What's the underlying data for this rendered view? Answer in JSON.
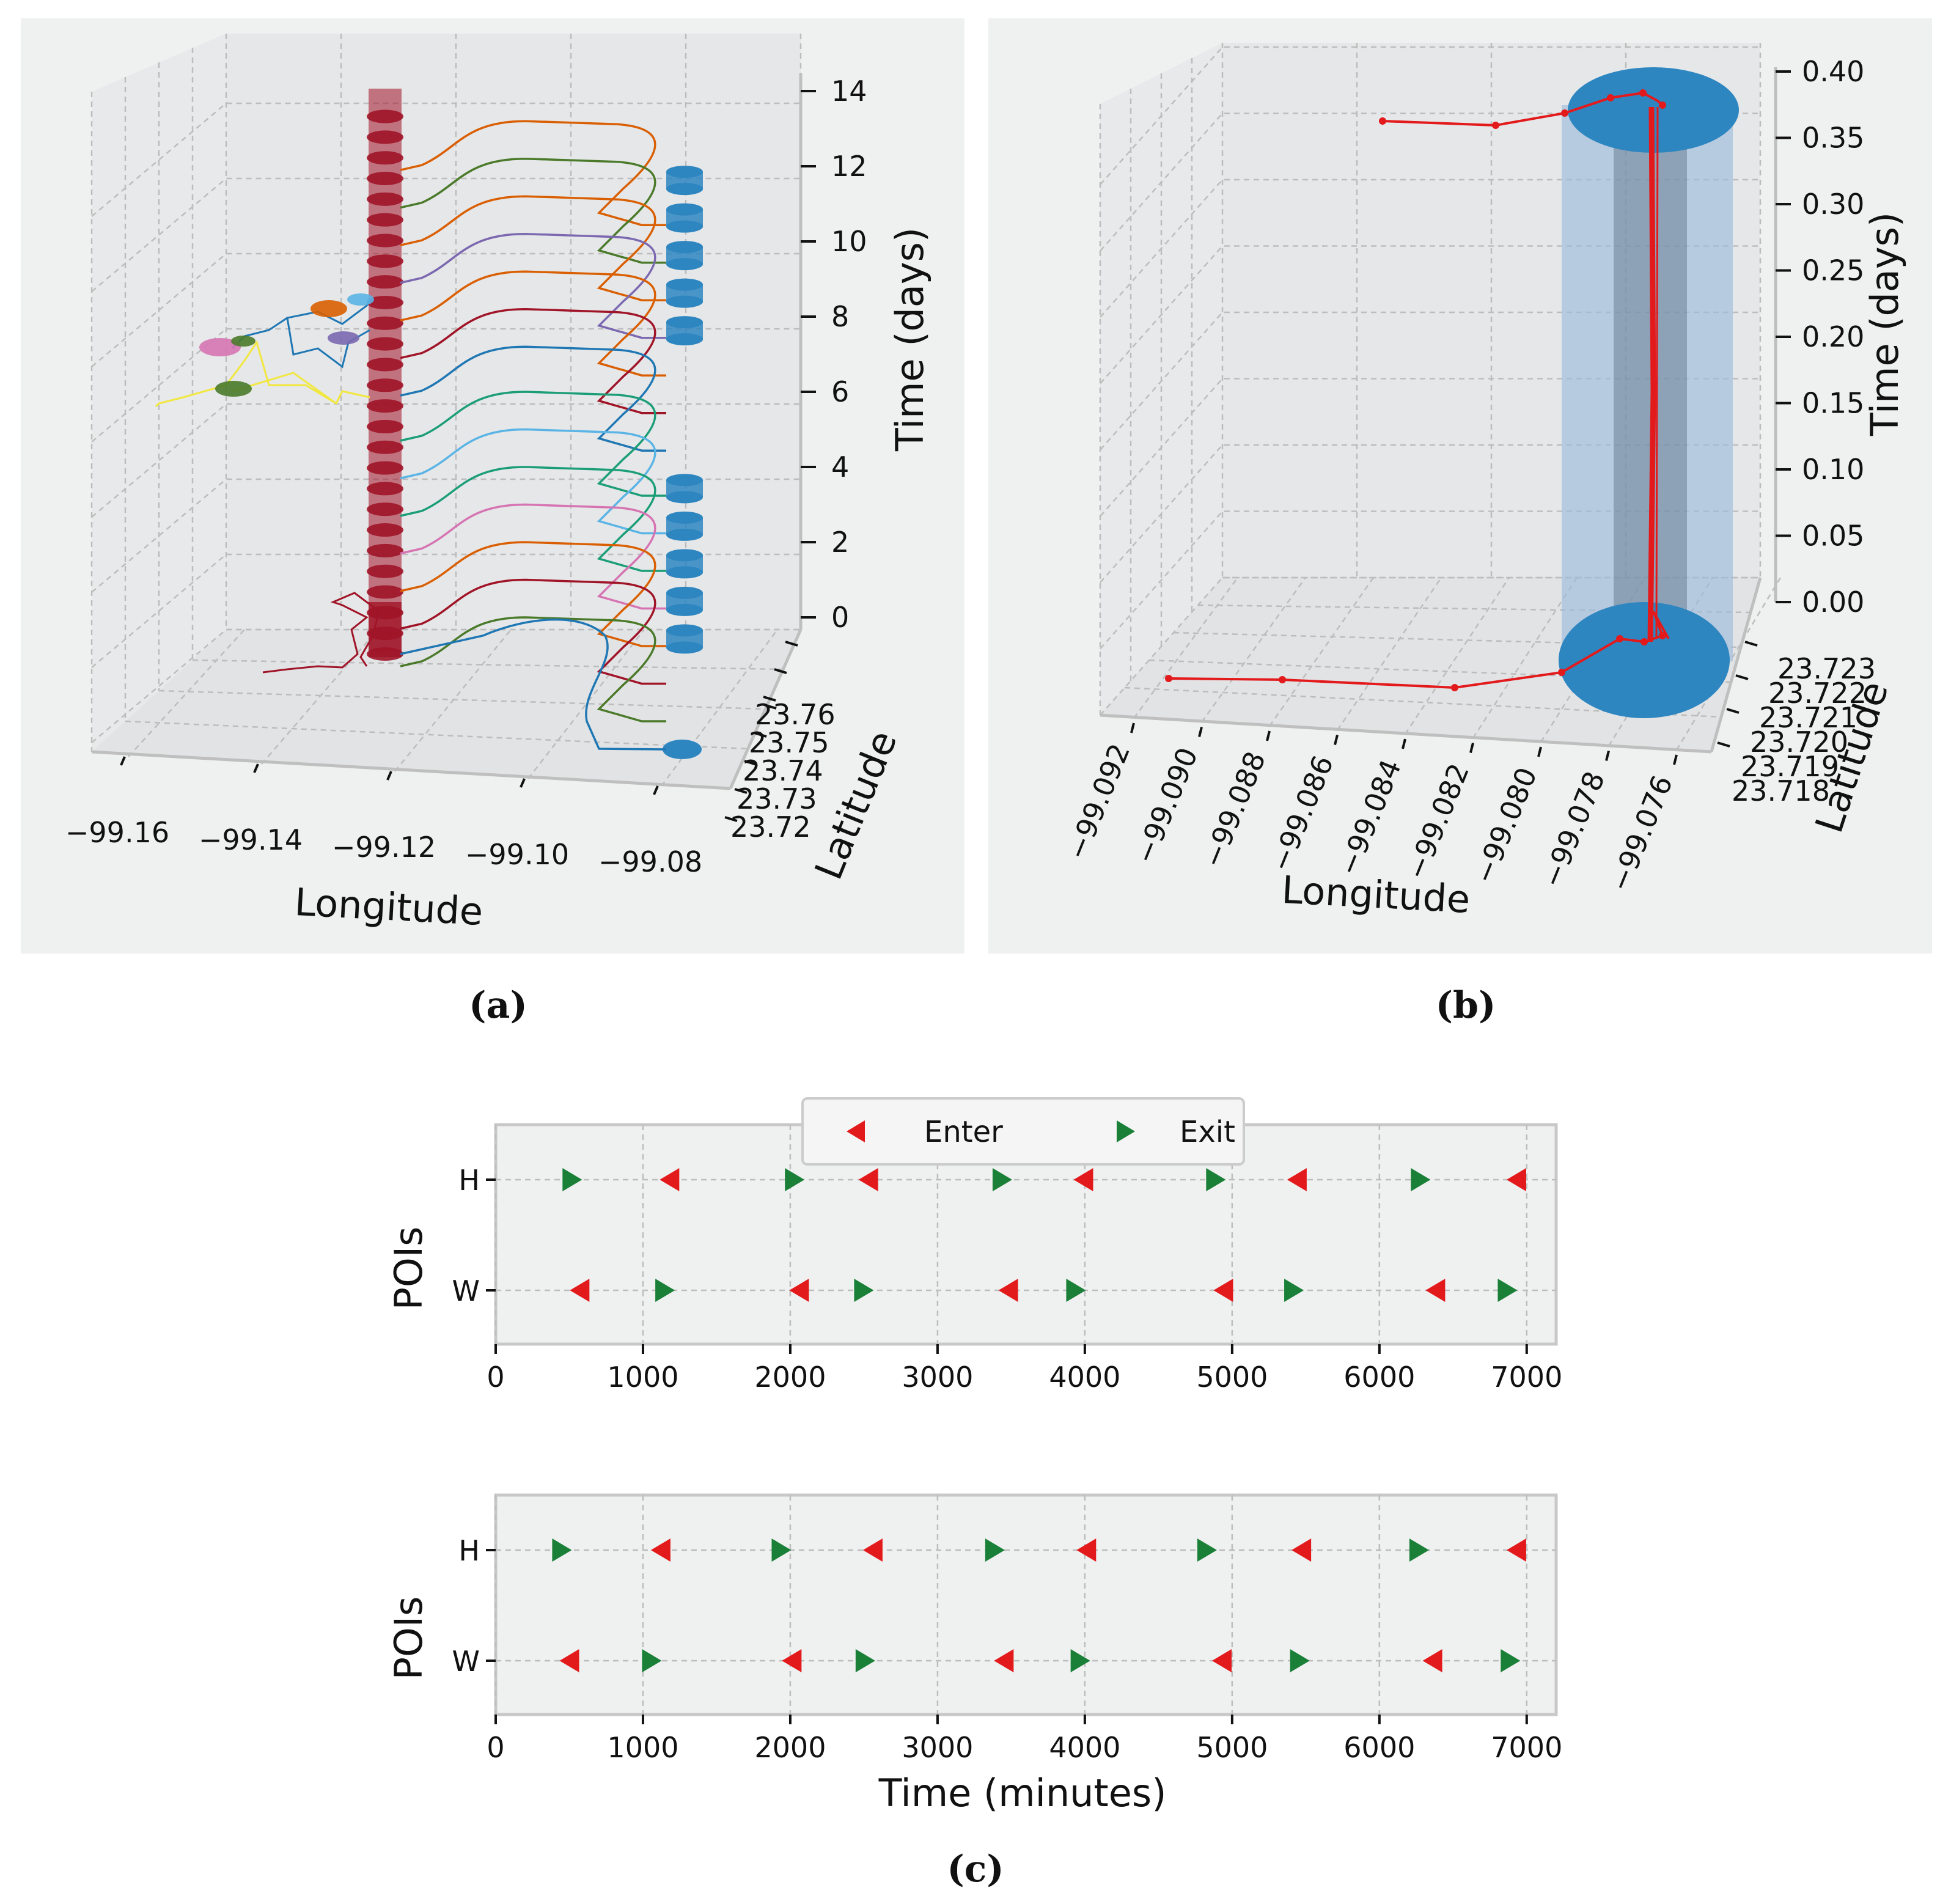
{
  "chart_data": [
    {
      "panel": "a",
      "type": "3d-line",
      "caption": "(a)",
      "xlabel": "Longitude",
      "ylabel": "Latitude",
      "zlabel": "Time (days)",
      "x_ticks": [
        "−99.16",
        "−99.14",
        "−99.12",
        "−99.10",
        "−99.08"
      ],
      "y_ticks": [
        "23.76",
        "23.75",
        "23.74",
        "23.73",
        "23.72"
      ],
      "z_ticks": [
        "0",
        "2",
        "4",
        "6",
        "8",
        "10",
        "12",
        "14"
      ],
      "xlim": [
        -99.165,
        -99.075
      ],
      "zlim": [
        0,
        14
      ],
      "poi_H": {
        "longitude": -99.121,
        "color": "#a01428"
      },
      "poi_W": {
        "longitude": -99.077,
        "color": "#2e86c1"
      },
      "trip_colors": [
        "#1f77b4",
        "#d95f02",
        "#1b9e77",
        "#4a7a2a",
        "#7b68b0",
        "#a01428",
        "#5ab4e6",
        "#d674b3"
      ],
      "trip_start_days_upper": [
        13.2,
        12.2,
        11.2,
        10.2,
        9.2,
        8.2,
        7.2
      ],
      "trip_start_days_lower": [
        6.0,
        5.0,
        4.0,
        3.0,
        2.0,
        1.0,
        0.0
      ],
      "side_clusters": [
        {
          "color": "#d95f02"
        },
        {
          "color": "#5ab4e6"
        },
        {
          "color": "#7b68b0"
        },
        {
          "color": "#d674b3"
        },
        {
          "color": "#4a7a2a"
        },
        {
          "color": "#4a7a2a"
        }
      ]
    },
    {
      "panel": "b",
      "type": "3d-line",
      "caption": "(b)",
      "xlabel": "Longitude",
      "ylabel": "Latitude",
      "zlabel": "Time (days)",
      "x_ticks": [
        "−99.092",
        "−99.090",
        "−99.088",
        "−99.086",
        "−99.084",
        "−99.082",
        "−99.080",
        "−99.078",
        "−99.076"
      ],
      "y_ticks": [
        "23.723",
        "23.722",
        "23.721",
        "23.720",
        "23.719",
        "23.718"
      ],
      "z_ticks": [
        "0.00",
        "0.05",
        "0.10",
        "0.15",
        "0.20",
        "0.25",
        "0.30",
        "0.35",
        "0.40"
      ],
      "zlim": [
        0,
        0.4
      ],
      "track_color": "#e31a1c",
      "cylinder_color": "#2e86c1"
    },
    {
      "panel": "c",
      "type": "scatter",
      "caption": "(c)",
      "xlabel": "Time (minutes)",
      "ylabel": "POIs",
      "categories": [
        "H",
        "W"
      ],
      "xlim": [
        0,
        7200
      ],
      "x_ticks": [
        "0",
        "1000",
        "2000",
        "3000",
        "4000",
        "5000",
        "6000",
        "7000"
      ],
      "legend": {
        "enter": "Enter",
        "exit": "Exit",
        "enter_color": "#e31a1c",
        "exit_color": "#1a7f37",
        "position": "top-center"
      },
      "subplots": [
        {
          "H": {
            "exit": [
              520,
              2030,
              3440,
              4890,
              6280
            ],
            "enter": [
              1180,
              2530,
              3990,
              5440,
              6930
            ]
          },
          "W": {
            "enter": [
              570,
              2060,
              3480,
              4940,
              6380
            ],
            "exit": [
              1150,
              2500,
              3940,
              5420,
              6870
            ]
          }
        },
        {
          "H": {
            "exit": [
              450,
              1940,
              3390,
              4830,
              6270
            ],
            "enter": [
              1120,
              2560,
              4010,
              5470,
              6930
            ]
          },
          "W": {
            "enter": [
              500,
              2010,
              3450,
              4930,
              6360
            ],
            "exit": [
              1060,
              2510,
              3970,
              5460,
              6890
            ]
          }
        }
      ]
    }
  ]
}
